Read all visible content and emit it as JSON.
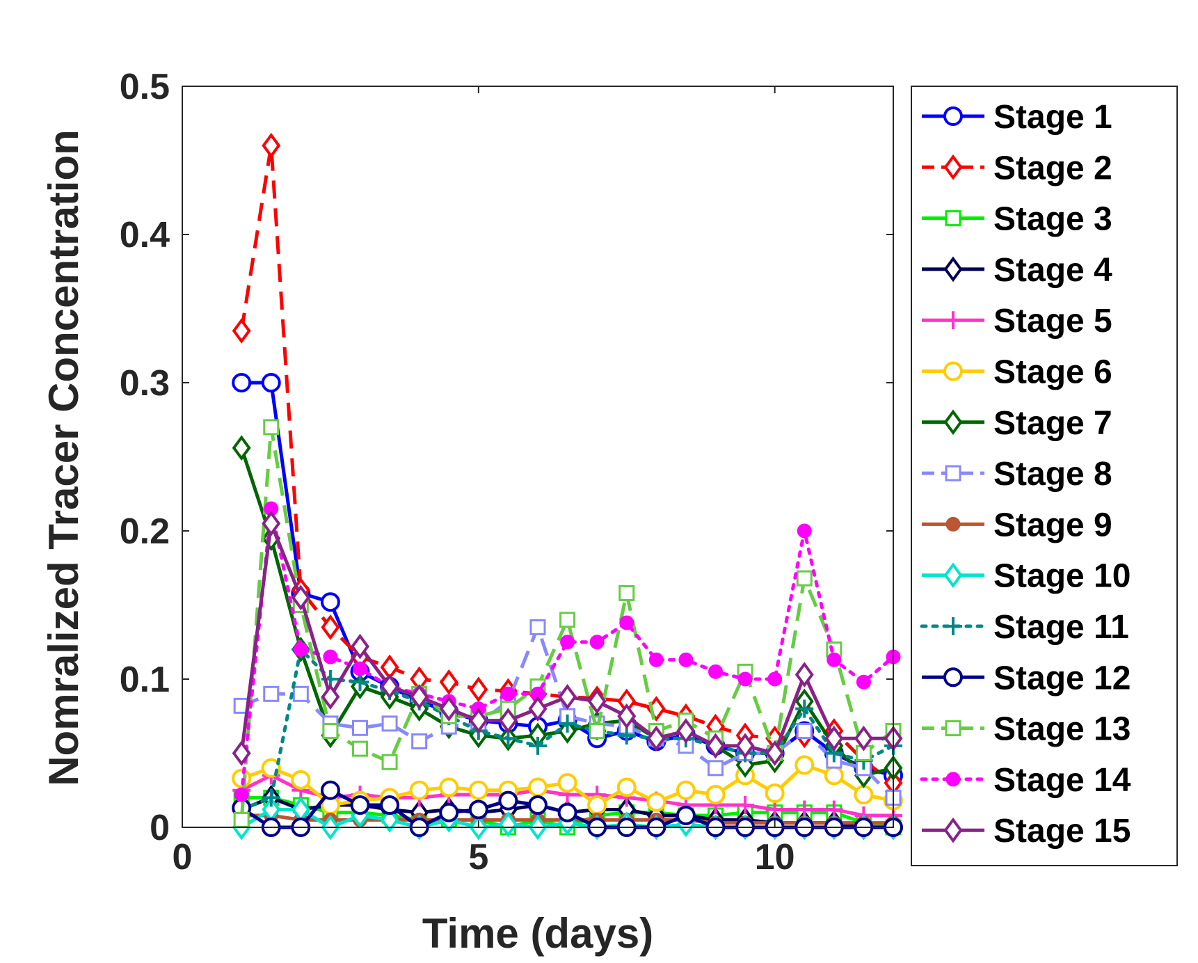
{
  "chart_data": {
    "type": "line",
    "title": "",
    "xlabel": "Time (days)",
    "ylabel": "Nomralized Tracer Concentration",
    "xlim": [
      0,
      12
    ],
    "ylim": [
      0,
      0.5
    ],
    "xticks": [
      0,
      5,
      10
    ],
    "xtick_labels": [
      "0",
      "5",
      "10"
    ],
    "yticks": [
      0,
      0.1,
      0.2,
      0.3,
      0.4,
      0.5
    ],
    "ytick_labels": [
      "0",
      "0.1",
      "0.2",
      "0.3",
      "0.4",
      "0.5"
    ],
    "grid": false,
    "legend_position": "outside-right",
    "x": [
      1,
      1.5,
      2,
      2.5,
      3,
      3.5,
      4,
      4.5,
      5,
      5.5,
      6,
      6.5,
      7,
      7.5,
      8,
      8.5,
      9,
      9.5,
      10,
      10.5,
      11,
      11.5,
      12
    ],
    "series": [
      {
        "name": "Stage 1",
        "color": "#0000ff",
        "dash": "solid",
        "marker": "circle",
        "values": [
          0.3,
          0.3,
          0.158,
          0.152,
          0.105,
          0.095,
          0.085,
          0.078,
          0.072,
          0.07,
          0.068,
          0.072,
          0.06,
          0.065,
          0.058,
          0.062,
          0.055,
          0.05,
          0.05,
          0.065,
          0.05,
          0.04,
          0.035
        ]
      },
      {
        "name": "Stage 2",
        "color": "#ff0000",
        "dash": "dashed",
        "marker": "diamond",
        "values": [
          0.335,
          0.46,
          0.16,
          0.135,
          0.115,
          0.108,
          0.1,
          0.098,
          0.093,
          0.092,
          0.09,
          0.088,
          0.087,
          0.085,
          0.08,
          0.075,
          0.068,
          0.062,
          0.06,
          0.062,
          0.065,
          0.045,
          0.03
        ]
      },
      {
        "name": "Stage 3",
        "color": "#00ee00",
        "dash": "solid",
        "marker": "square",
        "values": [
          0.02,
          0.02,
          0.015,
          0.01,
          0.01,
          0.008,
          0.005,
          0.005,
          0.005,
          0.0,
          0.005,
          0.0,
          0.008,
          0.01,
          0.01,
          0.008,
          0.008,
          0.01,
          0.01,
          0.01,
          0.01,
          0.003,
          0.0
        ]
      },
      {
        "name": "Stage 4",
        "color": "#000055",
        "dash": "solid",
        "marker": "diamond",
        "values": [
          0.012,
          0.02,
          0.012,
          0.015,
          0.015,
          0.012,
          0.01,
          0.012,
          0.01,
          0.012,
          0.015,
          0.01,
          0.012,
          0.012,
          0.008,
          0.008,
          0.005,
          0.005,
          0.003,
          0.003,
          0.003,
          0.0,
          0.0
        ]
      },
      {
        "name": "Stage 5",
        "color": "#ff33cc",
        "dash": "solid",
        "marker": "plus",
        "values": [
          0.025,
          0.035,
          0.025,
          0.02,
          0.022,
          0.02,
          0.02,
          0.022,
          0.022,
          0.022,
          0.025,
          0.022,
          0.022,
          0.02,
          0.018,
          0.015,
          0.015,
          0.015,
          0.012,
          0.012,
          0.012,
          0.008,
          0.008
        ]
      },
      {
        "name": "Stage 6",
        "color": "#ffcc00",
        "dash": "solid",
        "marker": "circle",
        "values": [
          0.033,
          0.04,
          0.032,
          0.015,
          0.018,
          0.02,
          0.025,
          0.027,
          0.025,
          0.025,
          0.027,
          0.03,
          0.015,
          0.027,
          0.017,
          0.025,
          0.022,
          0.035,
          0.023,
          0.042,
          0.035,
          0.022,
          0.018
        ]
      },
      {
        "name": "Stage 7",
        "color": "#006600",
        "dash": "solid",
        "marker": "diamond",
        "values": [
          0.256,
          0.195,
          0.12,
          0.062,
          0.095,
          0.088,
          0.08,
          0.068,
          0.062,
          0.06,
          0.062,
          0.065,
          0.07,
          0.072,
          0.06,
          0.065,
          0.055,
          0.042,
          0.045,
          0.085,
          0.055,
          0.035,
          0.04
        ]
      },
      {
        "name": "Stage 8",
        "color": "#8888ff",
        "dash": "dashed",
        "marker": "square",
        "values": [
          0.082,
          0.09,
          0.09,
          0.07,
          0.067,
          0.07,
          0.058,
          0.068,
          0.07,
          0.085,
          0.135,
          0.075,
          0.07,
          0.068,
          0.06,
          0.055,
          0.04,
          0.05,
          0.05,
          0.065,
          0.045,
          0.04,
          0.02
        ]
      },
      {
        "name": "Stage 9",
        "color": "#bb5533",
        "dash": "solid",
        "marker": "dot",
        "values": [
          0.008,
          0.008,
          0.005,
          0.005,
          0.005,
          0.005,
          0.005,
          0.005,
          0.005,
          0.005,
          0.005,
          0.005,
          0.005,
          0.005,
          0.005,
          0.005,
          0.003,
          0.003,
          0.003,
          0.003,
          0.003,
          0.003,
          0.003
        ]
      },
      {
        "name": "Stage 10",
        "color": "#00e5cc",
        "dash": "solid",
        "marker": "diamond",
        "values": [
          0.0,
          0.012,
          0.012,
          0.0,
          0.008,
          0.005,
          0.0,
          0.005,
          0.0,
          0.002,
          0.0,
          0.003,
          0.0,
          0.002,
          0.0,
          0.002,
          0.0,
          0.0,
          0.0,
          0.0,
          0.0,
          0.0,
          0.0
        ]
      },
      {
        "name": "Stage 11",
        "color": "#008888",
        "dash": "dotted",
        "marker": "plus",
        "values": [
          0.012,
          0.02,
          0.12,
          0.1,
          0.098,
          0.092,
          0.085,
          0.075,
          0.065,
          0.06,
          0.055,
          0.07,
          0.065,
          0.062,
          0.06,
          0.06,
          0.055,
          0.05,
          0.05,
          0.08,
          0.05,
          0.045,
          0.055
        ]
      },
      {
        "name": "Stage 12",
        "color": "#000088",
        "dash": "solid",
        "marker": "circle",
        "values": [
          0.013,
          0.0,
          0.0,
          0.025,
          0.015,
          0.015,
          0.0,
          0.01,
          0.012,
          0.018,
          0.015,
          0.01,
          0.0,
          0.0,
          0.0,
          0.008,
          0.0,
          0.0,
          0.0,
          0.0,
          0.0,
          0.0,
          0.0
        ]
      },
      {
        "name": "Stage 13",
        "color": "#66cc44",
        "dash": "dashed",
        "marker": "square",
        "values": [
          0.005,
          0.27,
          0.15,
          0.065,
          0.053,
          0.044,
          0.09,
          0.075,
          0.075,
          0.08,
          0.095,
          0.14,
          0.065,
          0.158,
          0.065,
          0.072,
          0.06,
          0.105,
          0.05,
          0.168,
          0.12,
          0.05,
          0.065
        ]
      },
      {
        "name": "Stage 14",
        "color": "#ff00ff",
        "dash": "dotted",
        "marker": "dot",
        "values": [
          0.022,
          0.215,
          0.12,
          0.115,
          0.107,
          0.095,
          0.09,
          0.085,
          0.08,
          0.09,
          0.09,
          0.125,
          0.125,
          0.138,
          0.113,
          0.113,
          0.105,
          0.1,
          0.1,
          0.2,
          0.113,
          0.098,
          0.115
        ]
      },
      {
        "name": "Stage 15",
        "color": "#882288",
        "dash": "solid",
        "marker": "diamond",
        "values": [
          0.05,
          0.205,
          0.155,
          0.088,
          0.122,
          0.095,
          0.088,
          0.08,
          0.072,
          0.072,
          0.08,
          0.088,
          0.085,
          0.075,
          0.06,
          0.065,
          0.055,
          0.055,
          0.05,
          0.103,
          0.06,
          0.06,
          0.06
        ]
      }
    ]
  }
}
